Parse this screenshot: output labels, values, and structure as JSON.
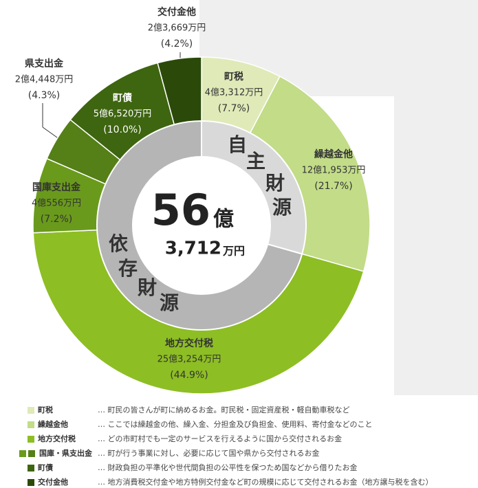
{
  "chart_data": {
    "type": "donut",
    "categories": [
      "町税",
      "繰越金他",
      "地方交付税",
      "国庫支出金",
      "県支出金",
      "町債",
      "交付金他"
    ],
    "amounts": [
      "4億3,312万円",
      "12億1,953万円",
      "25億3,254万円",
      "4億556万円",
      "2億4,448万円",
      "5億6,520万円",
      "2億3,669万円"
    ],
    "values": [
      7.7,
      21.7,
      44.9,
      7.2,
      4.3,
      10.0,
      4.2
    ],
    "value_labels": [
      "(7.7%)",
      "(21.7%)",
      "(44.9%)",
      "(7.2%)",
      "(4.3%)",
      "(10.0%)",
      "(4.2%)"
    ],
    "colors": [
      "#dfeab8",
      "#c2dc88",
      "#8dbe24",
      "#6a9a1c",
      "#557f17",
      "#3e6510",
      "#2b4a0a"
    ],
    "groups": [
      {
        "label": "自主財源",
        "color": "#d9d9d9"
      },
      {
        "label": "依存財源",
        "color": "#b5b5b5"
      }
    ],
    "center": {
      "number": "56",
      "unit": "億",
      "sub_number": "3,712",
      "sub_unit": "万円"
    },
    "legend": [
      {
        "label": "町税",
        "colors": [
          "#dfeab8"
        ],
        "description": "… 町民の皆さんが町に納めるお金。町民税・固定資産税・軽自動車税など"
      },
      {
        "label": "繰越金他",
        "colors": [
          "#c2dc88"
        ],
        "description": "… ここでは繰越金の他、繰入金、分担金及び負担金、使用料、寄付金などのこと"
      },
      {
        "label": "地方交付税",
        "colors": [
          "#8dbe24"
        ],
        "description": "… どの市町村でも一定のサービスを行えるように国から交付されるお金"
      },
      {
        "label": "国庫・県支出金",
        "colors": [
          "#6a9a1c",
          "#557f17"
        ],
        "description": "… 町が行う事業に対し、必要に応じて国や県から交付されるお金"
      },
      {
        "label": "町債",
        "colors": [
          "#3e6510"
        ],
        "description": "… 財政負担の平準化や世代間負担の公平性を保つため国などから借りたお金"
      },
      {
        "label": "交付金他",
        "colors": [
          "#2b4a0a"
        ],
        "description": "… 地方消費税交付金や地方特例交付金など町の規模に応じて交付されるお金（地方譲与税を含む）"
      }
    ]
  }
}
